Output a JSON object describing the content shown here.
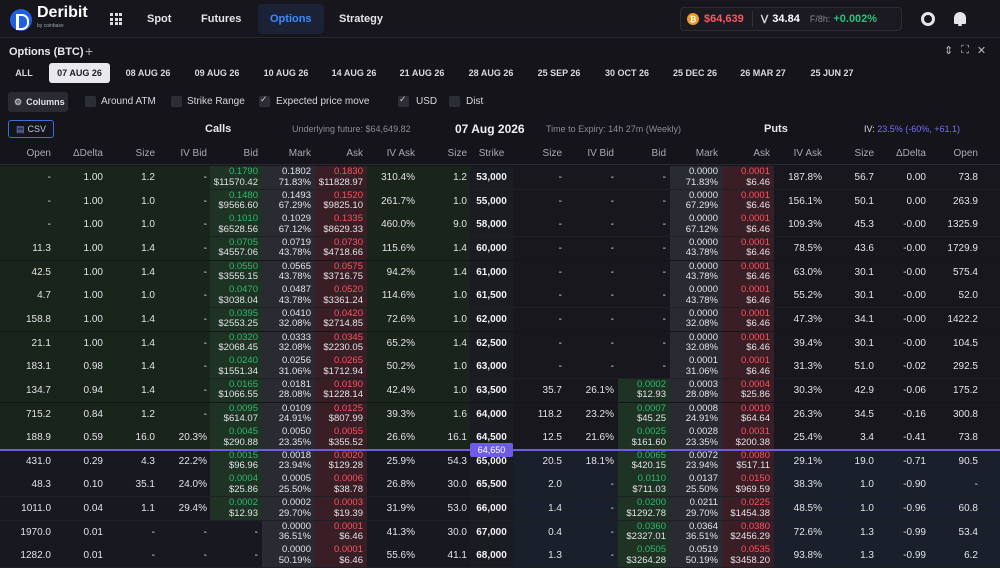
{
  "brand": {
    "name": "Deribit",
    "sub": "by coinbase"
  },
  "nav": [
    {
      "label": "Spot"
    },
    {
      "label": "Futures"
    },
    {
      "label": "Options"
    },
    {
      "label": "Strategy"
    }
  ],
  "ticker": {
    "btc_price": "$64,639",
    "dvol": "34.84",
    "funding_label": "F/8h:",
    "funding": "+0.002%"
  },
  "page": {
    "title": "Options (BTC)"
  },
  "expiry_tabs": [
    "ALL",
    "07 AUG 26",
    "08 AUG 26",
    "09 AUG 26",
    "10 AUG 26",
    "14 AUG 26",
    "21 AUG 26",
    "28 AUG 26",
    "25 SEP 26",
    "30 OCT 26",
    "25 DEC 26",
    "26 MAR 27",
    "25 JUN 27"
  ],
  "filters": {
    "columns": "Columns",
    "around_atm": "Around ATM",
    "strike_range": "Strike Range",
    "expected": "Expected price move",
    "usd": "USD",
    "dist": "Dist"
  },
  "header": {
    "csv": "CSV",
    "calls": "Calls",
    "underlying": "Underlying future: $64,649.82",
    "date": "07 Aug 2026",
    "tte": "Time to Expiry: 14h 27m (Weekly)",
    "puts": "Puts",
    "iv_label": "IV:",
    "iv_value": "23.5% (-60%, +61.1)"
  },
  "columns": {
    "calls": [
      "Open",
      "ΔDelta",
      "Size",
      "IV Bid",
      "Bid",
      "Mark",
      "Ask",
      "IV Ask",
      "Size"
    ],
    "strike": "Strike",
    "puts": [
      "Size",
      "IV Bid",
      "Bid",
      "Mark",
      "Ask",
      "IV Ask",
      "Size",
      "ΔDelta",
      "Open"
    ]
  },
  "spot_tag": "64,650",
  "rows": [
    {
      "strike": "53,000",
      "c_open": "-",
      "c_delta": "1.00",
      "c_size": "1.2",
      "c_ivbid": "-",
      "c_bid1": "0.1790",
      "c_bid2": "$11570.42",
      "c_mark1": "0.1802",
      "c_mark2": "71.83%",
      "c_ask1": "0.1830",
      "c_ask2": "$11828.97",
      "c_ivask": "310.4%",
      "c_size2": "1.2",
      "p_size": "-",
      "p_ivbid": "-",
      "p_bid1": "",
      "p_bid2": "-",
      "p_mark1": "0.0000",
      "p_mark2": "71.83%",
      "p_ask1": "0.0001",
      "p_ask2": "$6.46",
      "p_ivask": "187.8%",
      "p_size2": "56.7",
      "p_delta": "0.00",
      "p_open": "73.8"
    },
    {
      "strike": "55,000",
      "c_open": "-",
      "c_delta": "1.00",
      "c_size": "1.0",
      "c_ivbid": "-",
      "c_bid1": "0.1480",
      "c_bid2": "$9566.60",
      "c_mark1": "0.1493",
      "c_mark2": "67.29%",
      "c_ask1": "0.1520",
      "c_ask2": "$9825.10",
      "c_ivask": "261.7%",
      "c_size2": "1.0",
      "p_size": "-",
      "p_ivbid": "-",
      "p_bid1": "",
      "p_bid2": "-",
      "p_mark1": "0.0000",
      "p_mark2": "67.29%",
      "p_ask1": "0.0001",
      "p_ask2": "$6.46",
      "p_ivask": "156.1%",
      "p_size2": "50.1",
      "p_delta": "0.00",
      "p_open": "263.9"
    },
    {
      "strike": "58,000",
      "c_open": "-",
      "c_delta": "1.00",
      "c_size": "1.0",
      "c_ivbid": "-",
      "c_bid1": "0.1010",
      "c_bid2": "$6528.56",
      "c_mark1": "0.1029",
      "c_mark2": "67.12%",
      "c_ask1": "0.1335",
      "c_ask2": "$8629.33",
      "c_ivask": "460.0%",
      "c_size2": "9.0",
      "p_size": "-",
      "p_ivbid": "-",
      "p_bid1": "",
      "p_bid2": "-",
      "p_mark1": "0.0000",
      "p_mark2": "67.12%",
      "p_ask1": "0.0001",
      "p_ask2": "$6.46",
      "p_ivask": "109.3%",
      "p_size2": "45.3",
      "p_delta": "-0.00",
      "p_open": "1325.9"
    },
    {
      "strike": "60,000",
      "c_open": "11.3",
      "c_delta": "1.00",
      "c_size": "1.4",
      "c_ivbid": "-",
      "c_bid1": "0.0705",
      "c_bid2": "$4557.06",
      "c_mark1": "0.0719",
      "c_mark2": "43.78%",
      "c_ask1": "0.0730",
      "c_ask2": "$4718.66",
      "c_ivask": "115.6%",
      "c_size2": "1.4",
      "p_size": "-",
      "p_ivbid": "-",
      "p_bid1": "",
      "p_bid2": "-",
      "p_mark1": "0.0000",
      "p_mark2": "43.78%",
      "p_ask1": "0.0001",
      "p_ask2": "$6.46",
      "p_ivask": "78.5%",
      "p_size2": "43.6",
      "p_delta": "-0.00",
      "p_open": "1729.9"
    },
    {
      "strike": "61,000",
      "c_open": "42.5",
      "c_delta": "1.00",
      "c_size": "1.4",
      "c_ivbid": "-",
      "c_bid1": "0.0550",
      "c_bid2": "$3555.15",
      "c_mark1": "0.0565",
      "c_mark2": "43.78%",
      "c_ask1": "0.0575",
      "c_ask2": "$3716.75",
      "c_ivask": "94.2%",
      "c_size2": "1.4",
      "p_size": "-",
      "p_ivbid": "-",
      "p_bid1": "",
      "p_bid2": "-",
      "p_mark1": "0.0000",
      "p_mark2": "43.78%",
      "p_ask1": "0.0001",
      "p_ask2": "$6.46",
      "p_ivask": "63.0%",
      "p_size2": "30.1",
      "p_delta": "-0.00",
      "p_open": "575.4"
    },
    {
      "strike": "61,500",
      "c_open": "4.7",
      "c_delta": "1.00",
      "c_size": "1.0",
      "c_ivbid": "-",
      "c_bid1": "0.0470",
      "c_bid2": "$3038.04",
      "c_mark1": "0.0487",
      "c_mark2": "43.78%",
      "c_ask1": "0.0520",
      "c_ask2": "$3361.24",
      "c_ivask": "114.6%",
      "c_size2": "1.0",
      "p_size": "-",
      "p_ivbid": "-",
      "p_bid1": "",
      "p_bid2": "-",
      "p_mark1": "0.0000",
      "p_mark2": "43.78%",
      "p_ask1": "0.0001",
      "p_ask2": "$6.46",
      "p_ivask": "55.2%",
      "p_size2": "30.1",
      "p_delta": "-0.00",
      "p_open": "52.0"
    },
    {
      "strike": "62,000",
      "c_open": "158.8",
      "c_delta": "1.00",
      "c_size": "1.4",
      "c_ivbid": "-",
      "c_bid1": "0.0395",
      "c_bid2": "$2553.25",
      "c_mark1": "0.0410",
      "c_mark2": "32.08%",
      "c_ask1": "0.0420",
      "c_ask2": "$2714.85",
      "c_ivask": "72.6%",
      "c_size2": "1.0",
      "p_size": "-",
      "p_ivbid": "-",
      "p_bid1": "",
      "p_bid2": "-",
      "p_mark1": "0.0000",
      "p_mark2": "32.08%",
      "p_ask1": "0.0001",
      "p_ask2": "$6.46",
      "p_ivask": "47.3%",
      "p_size2": "34.1",
      "p_delta": "-0.00",
      "p_open": "1422.2"
    },
    {
      "strike": "62,500",
      "c_open": "21.1",
      "c_delta": "1.00",
      "c_size": "1.4",
      "c_ivbid": "-",
      "c_bid1": "0.0320",
      "c_bid2": "$2068.45",
      "c_mark1": "0.0333",
      "c_mark2": "32.08%",
      "c_ask1": "0.0345",
      "c_ask2": "$2230.05",
      "c_ivask": "65.2%",
      "c_size2": "1.4",
      "p_size": "-",
      "p_ivbid": "-",
      "p_bid1": "",
      "p_bid2": "-",
      "p_mark1": "0.0000",
      "p_mark2": "32.08%",
      "p_ask1": "0.0001",
      "p_ask2": "$6.46",
      "p_ivask": "39.4%",
      "p_size2": "30.1",
      "p_delta": "-0.00",
      "p_open": "104.5"
    },
    {
      "strike": "63,000",
      "c_open": "183.1",
      "c_delta": "0.98",
      "c_size": "1.4",
      "c_ivbid": "-",
      "c_bid1": "0.0240",
      "c_bid2": "$1551.34",
      "c_mark1": "0.0256",
      "c_mark2": "31.06%",
      "c_ask1": "0.0265",
      "c_ask2": "$1712.94",
      "c_ivask": "50.2%",
      "c_size2": "1.0",
      "p_size": "-",
      "p_ivbid": "-",
      "p_bid1": "",
      "p_bid2": "-",
      "p_mark1": "0.0001",
      "p_mark2": "31.06%",
      "p_ask1": "0.0001",
      "p_ask2": "$6.46",
      "p_ivask": "31.3%",
      "p_size2": "51.0",
      "p_delta": "-0.02",
      "p_open": "292.5"
    },
    {
      "strike": "63,500",
      "c_open": "134.7",
      "c_delta": "0.94",
      "c_size": "1.4",
      "c_ivbid": "-",
      "c_bid1": "0.0165",
      "c_bid2": "$1066.55",
      "c_mark1": "0.0181",
      "c_mark2": "28.08%",
      "c_ask1": "0.0190",
      "c_ask2": "$1228.14",
      "c_ivask": "42.4%",
      "c_size2": "1.0",
      "p_size": "35.7",
      "p_ivbid": "26.1%",
      "p_bid1": "0.0002",
      "p_bid2": "$12.93",
      "p_mark1": "0.0003",
      "p_mark2": "28.08%",
      "p_ask1": "0.0004",
      "p_ask2": "$25.86",
      "p_ivask": "30.3%",
      "p_size2": "42.9",
      "p_delta": "-0.06",
      "p_open": "175.2"
    },
    {
      "strike": "64,000",
      "c_open": "715.2",
      "c_delta": "0.84",
      "c_size": "1.2",
      "c_ivbid": "-",
      "c_bid1": "0.0095",
      "c_bid2": "$614.07",
      "c_mark1": "0.0109",
      "c_mark2": "24.91%",
      "c_ask1": "0.0125",
      "c_ask2": "$807.99",
      "c_ivask": "39.3%",
      "c_size2": "1.6",
      "p_size": "118.2",
      "p_ivbid": "23.2%",
      "p_bid1": "0.0007",
      "p_bid2": "$45.25",
      "p_mark1": "0.0008",
      "p_mark2": "24.91%",
      "p_ask1": "0.0010",
      "p_ask2": "$64.64",
      "p_ivask": "26.3%",
      "p_size2": "34.5",
      "p_delta": "-0.16",
      "p_open": "300.8"
    },
    {
      "strike": "64,500",
      "c_open": "188.9",
      "c_delta": "0.59",
      "c_size": "16.0",
      "c_ivbid": "20.3%",
      "c_bid1": "0.0045",
      "c_bid2": "$290.88",
      "c_mark1": "0.0050",
      "c_mark2": "23.35%",
      "c_ask1": "0.0055",
      "c_ask2": "$355.52",
      "c_ivask": "26.6%",
      "c_size2": "16.1",
      "p_size": "12.5",
      "p_ivbid": "21.6%",
      "p_bid1": "0.0025",
      "p_bid2": "$161.60",
      "p_mark1": "0.0028",
      "p_mark2": "23.35%",
      "p_ask1": "0.0031",
      "p_ask2": "$200.38",
      "p_ivask": "25.4%",
      "p_size2": "3.4",
      "p_delta": "-0.41",
      "p_open": "73.8"
    },
    {
      "strike": "65,000",
      "c_open": "431.0",
      "c_delta": "0.29",
      "c_size": "4.3",
      "c_ivbid": "22.2%",
      "c_bid1": "0.0015",
      "c_bid2": "$96.96",
      "c_mark1": "0.0018",
      "c_mark2": "23.94%",
      "c_ask1": "0.0020",
      "c_ask2": "$129.28",
      "c_ivask": "25.9%",
      "c_size2": "54.3",
      "p_size": "20.5",
      "p_ivbid": "18.1%",
      "p_bid1": "0.0065",
      "p_bid2": "$420.15",
      "p_mark1": "0.0072",
      "p_mark2": "23.94%",
      "p_ask1": "0.0080",
      "p_ask2": "$517.11",
      "p_ivask": "29.1%",
      "p_size2": "19.0",
      "p_delta": "-0.71",
      "p_open": "90.5"
    },
    {
      "strike": "65,500",
      "c_open": "48.3",
      "c_delta": "0.10",
      "c_size": "35.1",
      "c_ivbid": "24.0%",
      "c_bid1": "0.0004",
      "c_bid2": "$25.86",
      "c_mark1": "0.0005",
      "c_mark2": "25.50%",
      "c_ask1": "0.0006",
      "c_ask2": "$38.78",
      "c_ivask": "26.8%",
      "c_size2": "30.0",
      "p_size": "2.0",
      "p_ivbid": "-",
      "p_bid1": "0.0110",
      "p_bid2": "$711.03",
      "p_mark1": "0.0137",
      "p_mark2": "25.50%",
      "p_ask1": "0.0150",
      "p_ask2": "$969.59",
      "p_ivask": "38.3%",
      "p_size2": "1.0",
      "p_delta": "-0.90",
      "p_open": "-"
    },
    {
      "strike": "66,000",
      "c_open": "1011.0",
      "c_delta": "0.04",
      "c_size": "1.1",
      "c_ivbid": "29.4%",
      "c_bid1": "0.0002",
      "c_bid2": "$12.93",
      "c_mark1": "0.0002",
      "c_mark2": "29.70%",
      "c_ask1": "0.0003",
      "c_ask2": "$19.39",
      "c_ivask": "31.9%",
      "c_size2": "53.0",
      "p_size": "1.4",
      "p_ivbid": "-",
      "p_bid1": "0.0200",
      "p_bid2": "$1292.78",
      "p_mark1": "0.0211",
      "p_mark2": "29.70%",
      "p_ask1": "0.0225",
      "p_ask2": "$1454.38",
      "p_ivask": "48.5%",
      "p_size2": "1.0",
      "p_delta": "-0.96",
      "p_open": "60.8"
    },
    {
      "strike": "67,000",
      "c_open": "1970.0",
      "c_delta": "0.01",
      "c_size": "-",
      "c_ivbid": "-",
      "c_bid1": "",
      "c_bid2": "-",
      "c_mark1": "0.0000",
      "c_mark2": "36.51%",
      "c_ask1": "0.0001",
      "c_ask2": "$6.46",
      "c_ivask": "41.3%",
      "c_size2": "30.0",
      "p_size": "0.4",
      "p_ivbid": "-",
      "p_bid1": "0.0360",
      "p_bid2": "$2327.01",
      "p_mark1": "0.0364",
      "p_mark2": "36.51%",
      "p_ask1": "0.0380",
      "p_ask2": "$2456.29",
      "p_ivask": "72.6%",
      "p_size2": "1.3",
      "p_delta": "-0.99",
      "p_open": "53.4"
    },
    {
      "strike": "68,000",
      "c_open": "1282.0",
      "c_delta": "0.01",
      "c_size": "-",
      "c_ivbid": "-",
      "c_bid1": "",
      "c_bid2": "-",
      "c_mark1": "0.0000",
      "c_mark2": "50.19%",
      "c_ask1": "0.0001",
      "c_ask2": "$6.46",
      "c_ivask": "55.6%",
      "c_size2": "41.1",
      "p_size": "1.3",
      "p_ivbid": "-",
      "p_bid1": "0.0505",
      "p_bid2": "$3264.28",
      "p_mark1": "0.0519",
      "p_mark2": "50.19%",
      "p_ask1": "0.0535",
      "p_ask2": "$3458.20",
      "p_ivask": "93.8%",
      "p_size2": "1.3",
      "p_delta": "-0.99",
      "p_open": "6.2"
    }
  ]
}
